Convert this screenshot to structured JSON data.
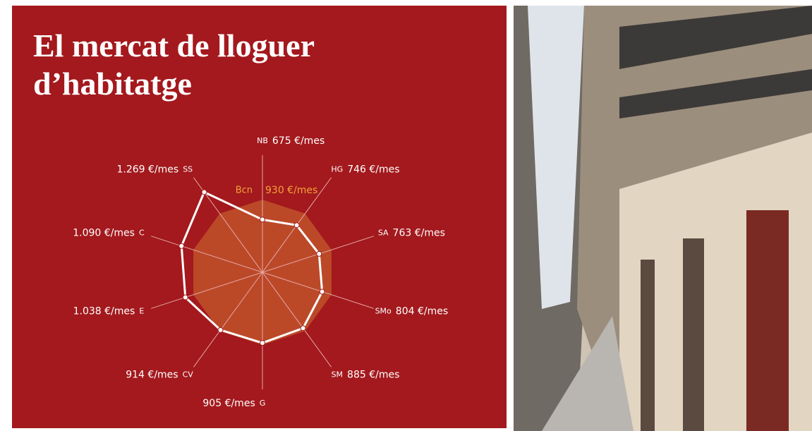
{
  "chart_data": {
    "type": "radar",
    "title": "El mercat de lloguer d’habitatge",
    "categories": [
      "NB",
      "HG",
      "SA",
      "SMo",
      "SM",
      "G",
      "CV",
      "E",
      "C",
      "SS"
    ],
    "values": [
      675,
      746,
      763,
      804,
      885,
      905,
      914,
      1038,
      1090,
      1269
    ],
    "value_labels": [
      "675 €/mes",
      "746 €/mes",
      "763 €/mes",
      "804 €/mes",
      "885 €/mes",
      "905 €/mes",
      "914 €/mes",
      "1.038 €/mes",
      "1.090 €/mes",
      "1.269 €/mes"
    ],
    "color": "#ffffff",
    "rlim": [
      0,
      1500
    ],
    "reference": {
      "name": "Bcn",
      "value": 930,
      "value_label": "930 €/mes",
      "color": "#c0522a",
      "label_color": "#f3a13a"
    }
  }
}
